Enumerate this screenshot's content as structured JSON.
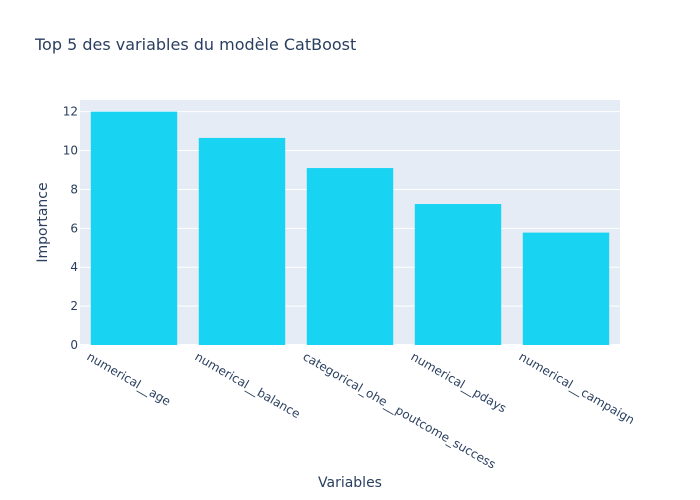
{
  "chart_data": {
    "type": "bar",
    "title": "Top 5 des variables du modèle CatBoost",
    "xlabel": "Variables",
    "ylabel": "Importance",
    "categories": [
      "numerical__age",
      "numerical__balance",
      "categorical_ohe__poutcome_success",
      "numerical__pdays",
      "numerical__campaign"
    ],
    "values": [
      12.0,
      10.65,
      9.1,
      7.25,
      5.78
    ],
    "ylim": [
      0,
      12.6
    ],
    "yticks": [
      0,
      2,
      4,
      6,
      8,
      10,
      12
    ],
    "grid": true,
    "bar_color": "#19d3f3",
    "plot_bg": "#e5ecf6",
    "text_color": "#2a3f5f"
  }
}
